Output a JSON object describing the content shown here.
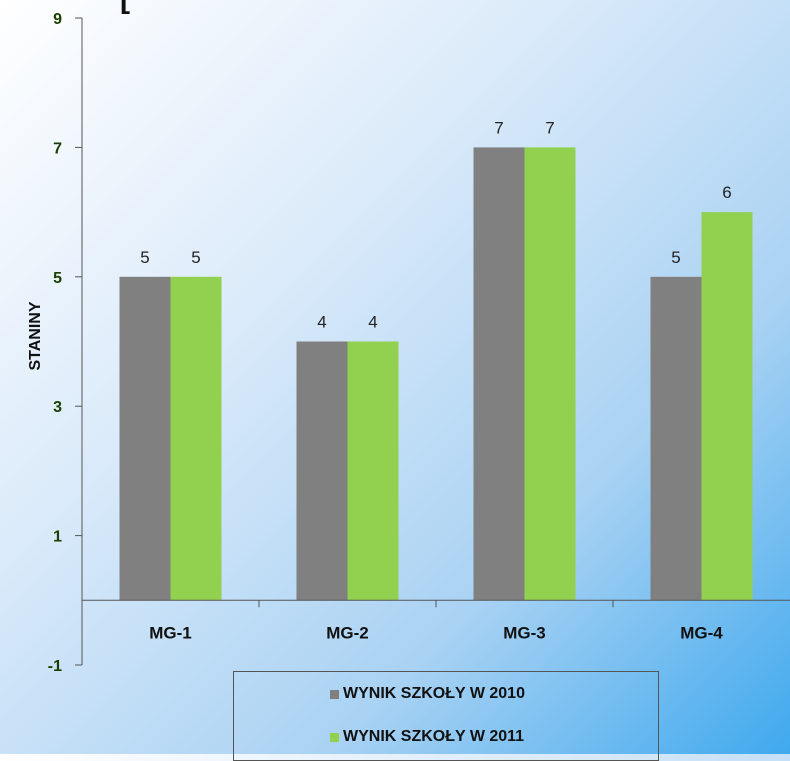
{
  "chart_data": {
    "type": "bar",
    "title": "[",
    "xlabel": "",
    "ylabel": "STANINY",
    "categories": [
      "MG-1",
      "MG-2",
      "MG-3",
      "MG-4"
    ],
    "series": [
      {
        "name": "WYNIK SZKOŁY W 2010",
        "values": [
          5,
          4,
          7,
          5
        ],
        "color": "#808080"
      },
      {
        "name": "WYNIK SZKOŁY W 2011",
        "values": [
          5,
          4,
          7,
          6
        ],
        "color": "#92d050"
      }
    ],
    "ylim": [
      -1,
      9
    ],
    "yticks": [
      -1,
      1,
      3,
      5,
      7,
      9
    ],
    "grid": false,
    "legend_position": "bottom"
  }
}
